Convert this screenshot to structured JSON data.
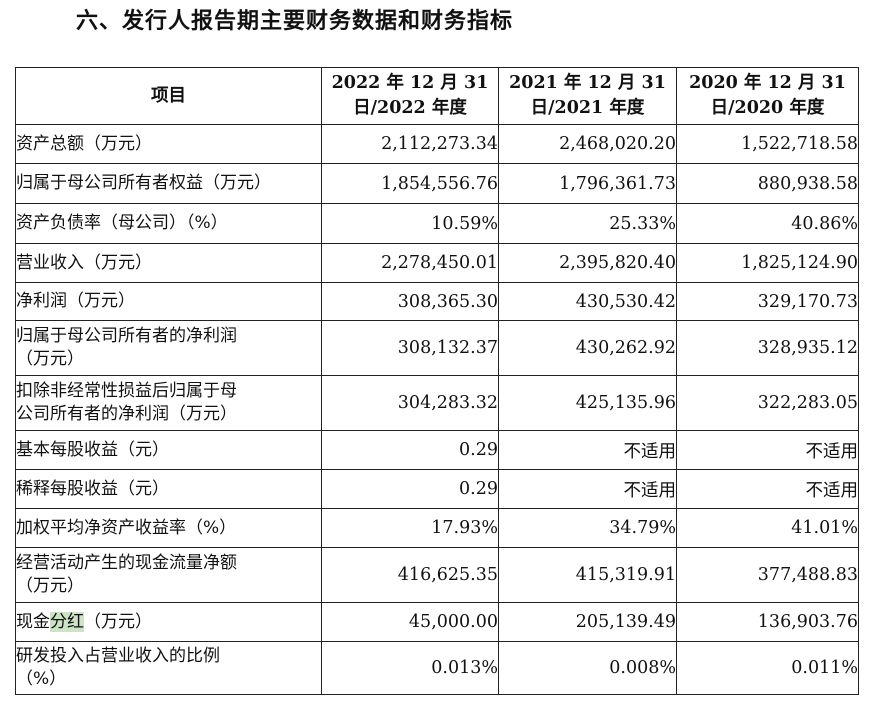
{
  "title": "六、发行人报告期主要财务数据和财务指标",
  "table": {
    "headers": {
      "item": "项目",
      "col1_line1": "2022 年 12 月 31",
      "col1_line2": "日/2022 年度",
      "col2_line1": "2021 年 12 月 31",
      "col2_line2": "日/2021 年度",
      "col3_line1": "2020 年 12 月 31",
      "col3_line2": "日/2020 年度"
    },
    "rows": [
      {
        "label": "资产总额（万元）",
        "v2022": "2,112,273.34",
        "v2021": "2,468,020.20",
        "v2020": "1,522,718.58"
      },
      {
        "label": "归属于母公司所有者权益（万元）",
        "v2022": "1,854,556.76",
        "v2021": "1,796,361.73",
        "v2020": "880,938.58"
      },
      {
        "label": "资产负债率（母公司）（%）",
        "v2022": "10.59%",
        "v2021": "25.33%",
        "v2020": "40.86%"
      },
      {
        "label": "营业收入（万元）",
        "v2022": "2,278,450.01",
        "v2021": "2,395,820.40",
        "v2020": "1,825,124.90"
      },
      {
        "label": "净利润（万元）",
        "v2022": "308,365.30",
        "v2021": "430,530.42",
        "v2020": "329,170.73"
      },
      {
        "label_line1": "归属于母公司所有者的净利润",
        "label_line2": "（万元）",
        "v2022": "308,132.37",
        "v2021": "430,262.92",
        "v2020": "328,935.12"
      },
      {
        "label_line1": "扣除非经常性损益后归属于母",
        "label_line2": "公司所有者的净利润（万元）",
        "v2022": "304,283.32",
        "v2021": "425,135.96",
        "v2020": "322,283.05"
      },
      {
        "label": "基本每股收益（元）",
        "v2022": "0.29",
        "v2021": "不适用",
        "v2020": "不适用"
      },
      {
        "label": "稀释每股收益（元）",
        "v2022": "0.29",
        "v2021": "不适用",
        "v2020": "不适用"
      },
      {
        "label": "加权平均净资产收益率（%）",
        "v2022": "17.93%",
        "v2021": "34.79%",
        "v2020": "41.01%"
      },
      {
        "label_line1": "经营活动产生的现金流量净额",
        "label_line2": "（万元）",
        "v2022": "416,625.35",
        "v2021": "415,319.91",
        "v2020": "377,488.83"
      },
      {
        "label_pre": "现金",
        "label_highlight": "分红",
        "label_post": "（万元）",
        "v2022": "45,000.00",
        "v2021": "205,139.49",
        "v2020": "136,903.76"
      },
      {
        "label_line1": "研发投入占营业收入的比例",
        "label_line2": "（%）",
        "v2022": "0.013%",
        "v2021": "0.008%",
        "v2020": "0.011%"
      }
    ]
  }
}
